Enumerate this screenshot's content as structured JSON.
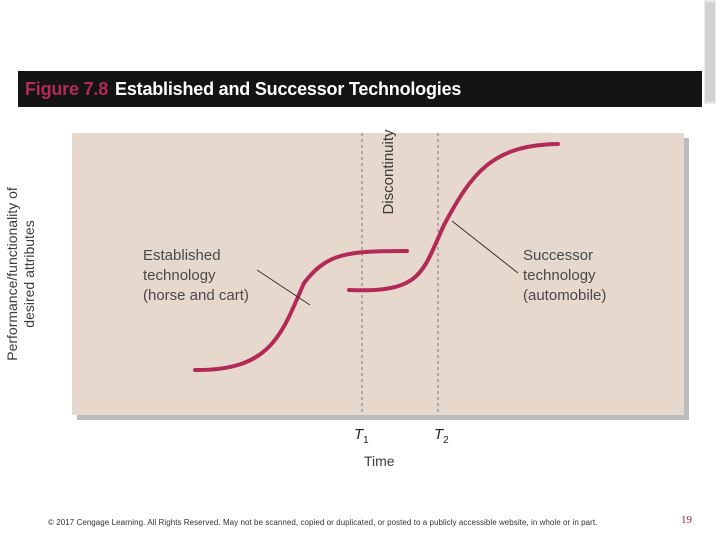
{
  "title": {
    "figure_number": "Figure 7.8",
    "text": "Established and Successor Technologies"
  },
  "diagram": {
    "y_axis_label": "Performance/functionality of desired attributes",
    "x_axis_label": "Time",
    "ticks": [
      {
        "name": "T",
        "subscript": "1"
      },
      {
        "name": "T",
        "subscript": "2"
      }
    ],
    "discontinuity_label": "Discontinuity",
    "established": {
      "line1": "Established",
      "line2": "technology",
      "line3": "(horse and cart)"
    },
    "successor": {
      "line1": "Successor",
      "line2": "technology",
      "line3": "(automobile)"
    },
    "colors": {
      "panel_bg": "#e6d8cc",
      "curve": "#b22a58",
      "shadow": "#bdbdbd",
      "title_bg": "#141414"
    }
  },
  "footer": {
    "copyright": "© 2017 Cengage Learning. All Rights Reserved. May not be scanned, copied or duplicated, or posted to a publicly accessible website, in whole or in part.",
    "page_number": "19"
  }
}
